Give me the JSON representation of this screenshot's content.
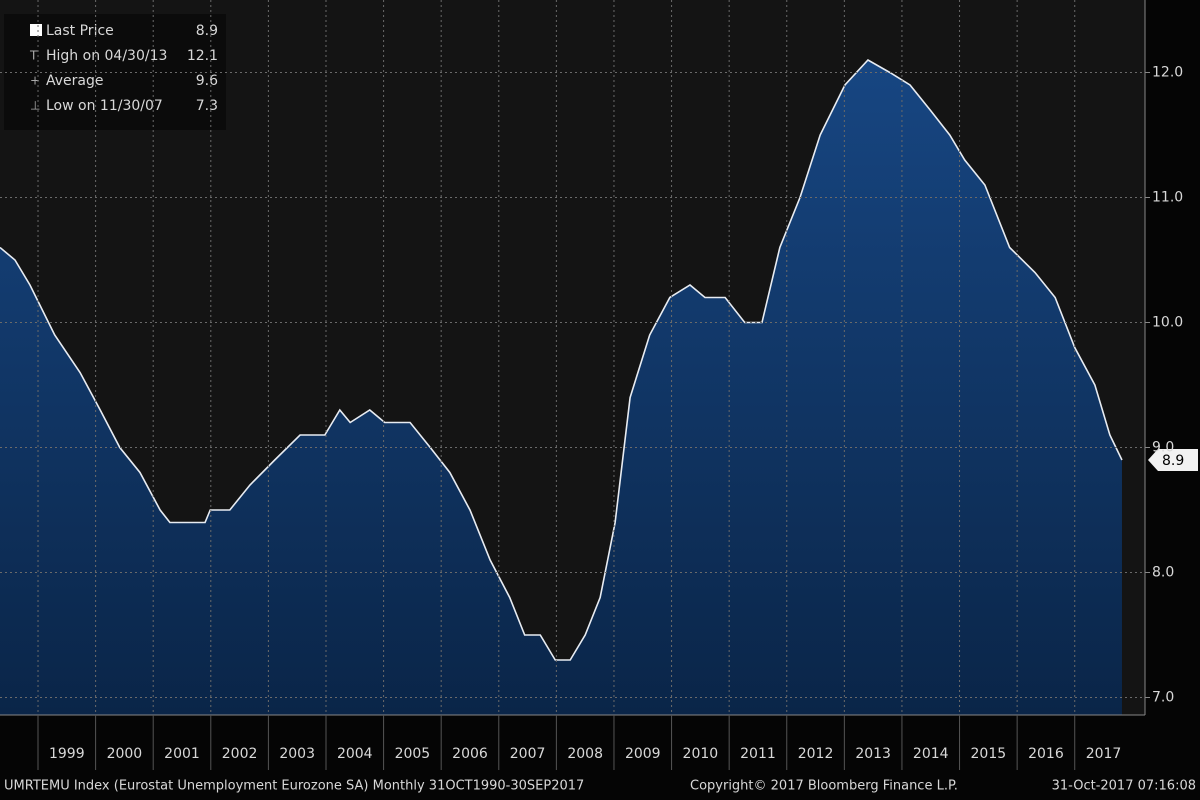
{
  "chart_data": {
    "type": "area",
    "x": [
      1998.34,
      1998.6,
      1998.86,
      1999.29,
      1999.73,
      2000.08,
      2000.42,
      2000.77,
      2001.12,
      2001.29,
      2001.9,
      2001.99,
      2002.33,
      2002.68,
      2003.11,
      2003.55,
      2003.98,
      2004.24,
      2004.42,
      2004.76,
      2005.02,
      2005.46,
      2005.81,
      2006.15,
      2006.5,
      2006.85,
      2007.19,
      2007.45,
      2007.72,
      2007.98,
      2008.24,
      2008.5,
      2008.76,
      2009.02,
      2009.28,
      2009.62,
      2009.97,
      2010.32,
      2010.58,
      2010.93,
      2011.27,
      2011.57,
      2011.88,
      2012.23,
      2012.58,
      2013.01,
      2013.41,
      2013.79,
      2014.14,
      2014.49,
      2014.83,
      2015.09,
      2015.44,
      2015.87,
      2016.31,
      2016.66,
      2017.0,
      2017.35,
      2017.61,
      2017.82
    ],
    "series": [
      {
        "color": "#e8ecf2",
        "values": [
          10.6,
          10.5,
          10.3,
          9.9,
          9.6,
          9.3,
          9.0,
          8.8,
          8.5,
          8.4,
          8.4,
          8.5,
          8.5,
          8.7,
          8.9,
          9.1,
          9.1,
          9.3,
          9.2,
          9.3,
          9.2,
          9.2,
          9.0,
          8.8,
          8.5,
          8.1,
          7.8,
          7.5,
          7.5,
          7.3,
          7.3,
          7.5,
          7.8,
          8.4,
          9.4,
          9.9,
          10.2,
          10.3,
          10.2,
          10.2,
          10.0,
          10.0,
          10.6,
          11.0,
          11.5,
          11.9,
          12.1,
          12.0,
          11.9,
          11.7,
          11.5,
          11.3,
          11.1,
          10.6,
          10.4,
          10.2,
          9.8,
          9.5,
          9.1,
          8.9
        ]
      }
    ],
    "xlim": [
      1998.34,
      2018.22
    ],
    "xticks": [
      1999,
      2000,
      2001,
      2002,
      2003,
      2004,
      2005,
      2006,
      2007,
      2008,
      2009,
      2010,
      2011,
      2012,
      2013,
      2014,
      2015,
      2016,
      2017
    ],
    "ylim": [
      6.86,
      12.58
    ],
    "yticks": [
      {
        "value": 7,
        "label": "7.0"
      },
      {
        "value": 8,
        "label": "8.0"
      },
      {
        "value": 9,
        "label": "9.0"
      },
      {
        "value": 10,
        "label": "10.0"
      },
      {
        "value": 11,
        "label": "11.0"
      },
      {
        "value": 12,
        "label": "12.0"
      }
    ],
    "grid": true,
    "legend": [
      {
        "label": "Last Price",
        "value": 8.9
      },
      {
        "label": "High on 04/30/13",
        "value": 12.1
      },
      {
        "label": "Average",
        "value": 9.6
      },
      {
        "label": "Low on 11/30/07",
        "value": 7.3
      }
    ],
    "footer": {
      "left": "UMRTEMU Index (Eurostat Unemployment Eurozone SA)  Monthly 31OCT1990-30SEP2017",
      "center": "Copyright© 2017 Bloomberg Finance L.P.",
      "right": "31-Oct-2017 07:16:08"
    }
  }
}
